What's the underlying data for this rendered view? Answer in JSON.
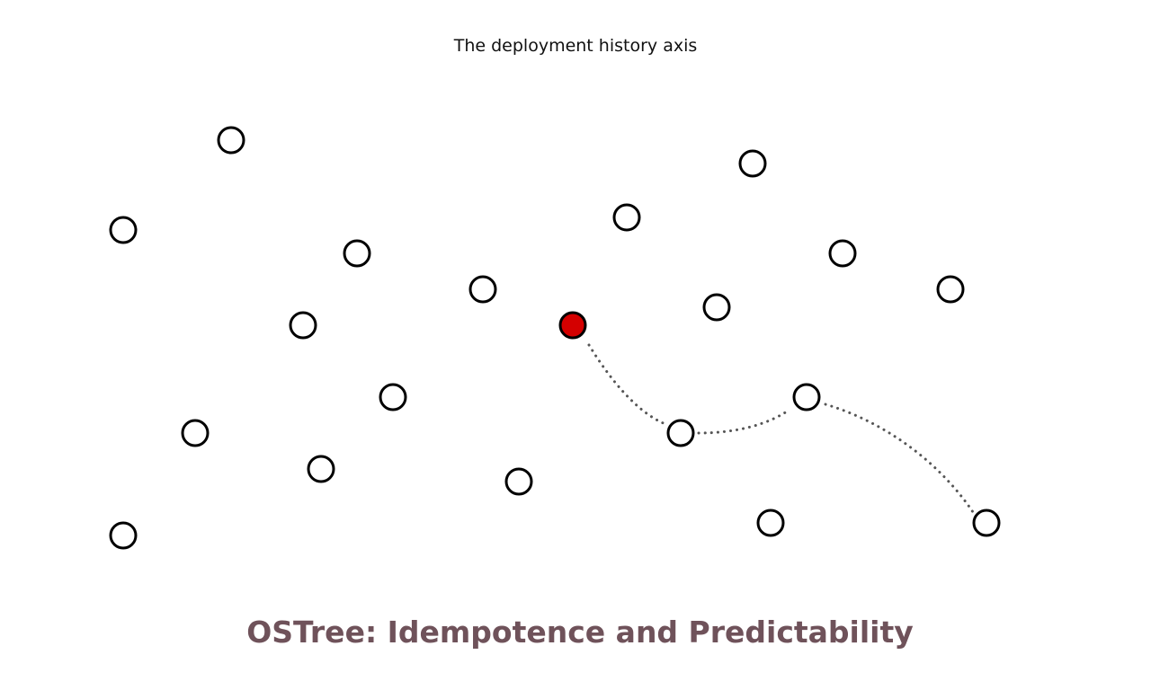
{
  "caption": "The deployment history axis",
  "title": "OSTree: Idempotence and Predictability",
  "colors": {
    "title": "#6f525a",
    "node_stroke": "#000000",
    "node_fill": "#ffffff",
    "current_node_fill": "#d40000",
    "path_stroke": "#555555"
  },
  "nodes": [
    {
      "id": "n01",
      "current": false
    },
    {
      "id": "n02",
      "current": false
    },
    {
      "id": "n03",
      "current": false
    },
    {
      "id": "n04",
      "current": false
    },
    {
      "id": "n05",
      "current": false
    },
    {
      "id": "n06",
      "current": false
    },
    {
      "id": "n07",
      "current": false
    },
    {
      "id": "n08",
      "current": false
    },
    {
      "id": "n09",
      "current": false
    },
    {
      "id": "n10",
      "current": false
    },
    {
      "id": "n11",
      "current": true
    },
    {
      "id": "n12",
      "current": false
    },
    {
      "id": "n13",
      "current": false
    },
    {
      "id": "n14",
      "current": false
    },
    {
      "id": "n15",
      "current": false
    },
    {
      "id": "n16",
      "current": false
    },
    {
      "id": "n17",
      "current": false
    },
    {
      "id": "n18",
      "current": false
    },
    {
      "id": "n19",
      "current": false
    },
    {
      "id": "n20",
      "current": false
    },
    {
      "id": "n21",
      "current": false
    }
  ],
  "history_path": [
    "n11",
    "n15",
    "n18",
    "n21"
  ]
}
